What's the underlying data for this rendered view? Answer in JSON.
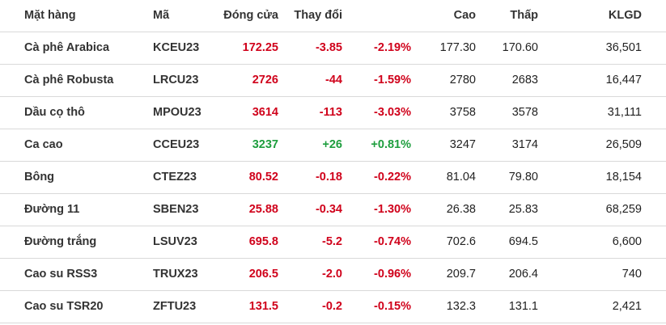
{
  "headers": {
    "name": "Mặt hàng",
    "code": "Mã",
    "close": "Đóng cửa",
    "change": "Thay đổi",
    "high": "Cao",
    "low": "Thấp",
    "volume": "KLGD"
  },
  "colors": {
    "negative": "#d0021b",
    "positive": "#1e9e3e"
  },
  "rows": [
    {
      "name": "Cà phê Arabica",
      "code": "KCEU23",
      "close": "172.25",
      "change": "-3.85",
      "pct": "-2.19%",
      "high": "177.30",
      "low": "170.60",
      "volume": "36,501",
      "trend": "neg"
    },
    {
      "name": "Cà phê Robusta",
      "code": "LRCU23",
      "close": "2726",
      "change": "-44",
      "pct": "-1.59%",
      "high": "2780",
      "low": "2683",
      "volume": "16,447",
      "trend": "neg"
    },
    {
      "name": "Dầu cọ thô",
      "code": "MPOU23",
      "close": "3614",
      "change": "-113",
      "pct": "-3.03%",
      "high": "3758",
      "low": "3578",
      "volume": "31,111",
      "trend": "neg"
    },
    {
      "name": "Ca cao",
      "code": "CCEU23",
      "close": "3237",
      "change": "+26",
      "pct": "+0.81%",
      "high": "3247",
      "low": "3174",
      "volume": "26,509",
      "trend": "pos"
    },
    {
      "name": "Bông",
      "code": "CTEZ23",
      "close": "80.52",
      "change": "-0.18",
      "pct": "-0.22%",
      "high": "81.04",
      "low": "79.80",
      "volume": "18,154",
      "trend": "neg"
    },
    {
      "name": "Đường 11",
      "code": "SBEN23",
      "close": "25.88",
      "change": "-0.34",
      "pct": "-1.30%",
      "high": "26.38",
      "low": "25.83",
      "volume": "68,259",
      "trend": "neg"
    },
    {
      "name": "Đường trắng",
      "code": "LSUV23",
      "close": "695.8",
      "change": "-5.2",
      "pct": "-0.74%",
      "high": "702.6",
      "low": "694.5",
      "volume": "6,600",
      "trend": "neg"
    },
    {
      "name": "Cao su RSS3",
      "code": "TRUX23",
      "close": "206.5",
      "change": "-2.0",
      "pct": "-0.96%",
      "high": "209.7",
      "low": "206.4",
      "volume": "740",
      "trend": "neg"
    },
    {
      "name": "Cao su TSR20",
      "code": "ZFTU23",
      "close": "131.5",
      "change": "-0.2",
      "pct": "-0.15%",
      "high": "132.3",
      "low": "131.1",
      "volume": "2,421",
      "trend": "neg"
    }
  ]
}
